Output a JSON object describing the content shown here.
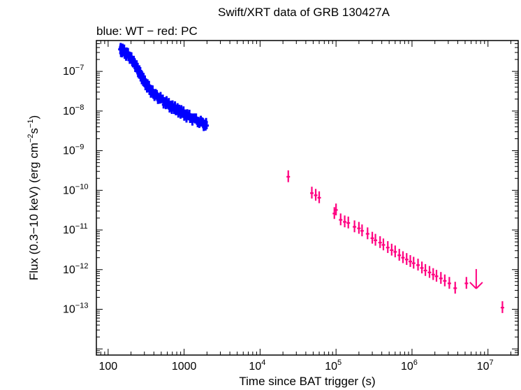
{
  "chart_data": {
    "type": "scatter",
    "title": "Swift/XRT data of GRB 130427A",
    "subtitle": "blue: WT − red: PC",
    "xlabel": "Time since BAT trigger (s)",
    "ylabel": {
      "prefix": "Flux (0.3−10 keV) (erg cm",
      "exp1": "−2",
      "mid": "s",
      "exp2": "−1",
      "suffix": ")"
    },
    "x_scale": "log",
    "y_scale": "log",
    "xlim": [
      70,
      25000000
    ],
    "ylim": [
      7e-15,
      6e-07
    ],
    "x_ticks": [
      {
        "value": 100,
        "base": "100",
        "exp": ""
      },
      {
        "value": 1000,
        "base": "1000",
        "exp": ""
      },
      {
        "value": 10000,
        "base": "10",
        "exp": "4"
      },
      {
        "value": 100000,
        "base": "10",
        "exp": "5"
      },
      {
        "value": 1000000,
        "base": "10",
        "exp": "6"
      },
      {
        "value": 10000000,
        "base": "10",
        "exp": "7"
      }
    ],
    "y_ticks": [
      {
        "value": 1e-07,
        "base": "10",
        "exp": "−7"
      },
      {
        "value": 1e-08,
        "base": "10",
        "exp": "−8"
      },
      {
        "value": 1e-09,
        "base": "10",
        "exp": "−9"
      },
      {
        "value": 1e-10,
        "base": "10",
        "exp": "−10"
      },
      {
        "value": 1e-11,
        "base": "10",
        "exp": "−11"
      },
      {
        "value": 1e-12,
        "base": "10",
        "exp": "−12"
      },
      {
        "value": 1e-13,
        "base": "10",
        "exp": "−13"
      }
    ],
    "series": [
      {
        "name": "WT",
        "color": "#0000ff",
        "points": [
          [
            145,
            3.6e-07
          ],
          [
            150,
            3.4e-07
          ],
          [
            160,
            3.2e-07
          ],
          [
            170,
            2.9e-07
          ],
          [
            180,
            2.6e-07
          ],
          [
            190,
            2.4e-07
          ],
          [
            200,
            2.1e-07
          ],
          [
            210,
            1.85e-07
          ],
          [
            220,
            1.6e-07
          ],
          [
            230,
            1.4e-07
          ],
          [
            240,
            1.2e-07
          ],
          [
            250,
            1.05e-07
          ],
          [
            260,
            9e-08
          ],
          [
            270,
            8e-08
          ],
          [
            285,
            6.5e-08
          ],
          [
            300,
            5.5e-08
          ],
          [
            320,
            4.6e-08
          ],
          [
            340,
            3.9e-08
          ],
          [
            360,
            3.4e-08
          ],
          [
            380,
            3e-08
          ],
          [
            400,
            2.7e-08
          ],
          [
            430,
            2.4e-08
          ],
          [
            460,
            2.15e-08
          ],
          [
            500,
            1.95e-08
          ],
          [
            550,
            1.7e-08
          ],
          [
            600,
            1.5e-08
          ],
          [
            660,
            1.35e-08
          ],
          [
            720,
            1.2e-08
          ],
          [
            800,
            1.1e-08
          ],
          [
            880,
            9.8e-09
          ],
          [
            960,
            8.8e-09
          ],
          [
            1050,
            8e-09
          ],
          [
            1150,
            7.2e-09
          ],
          [
            1250,
            6.6e-09
          ],
          [
            1400,
            6e-09
          ],
          [
            1550,
            5.4e-09
          ],
          [
            1700,
            5e-09
          ],
          [
            1850,
            4.6e-09
          ],
          [
            1980,
            4.3e-09
          ]
        ]
      },
      {
        "name": "PC",
        "color": "#ff0080",
        "points": [
          [
            23500,
            2.2e-10
          ],
          [
            48000,
            8.5e-11
          ],
          [
            54000,
            7.5e-11
          ],
          [
            60000,
            6.5e-11
          ],
          [
            95000,
            2.6e-11
          ],
          [
            100000,
            3.2e-11
          ],
          [
            115000,
            1.8e-11
          ],
          [
            130000,
            1.6e-11
          ],
          [
            145000,
            1.5e-11
          ],
          [
            175000,
            1.2e-11
          ],
          [
            200000,
            1.1e-11
          ],
          [
            220000,
            9.5e-12
          ],
          [
            260000,
            8e-12
          ],
          [
            300000,
            6.2e-12
          ],
          [
            330000,
            5.5e-12
          ],
          [
            380000,
            4.8e-12
          ],
          [
            420000,
            4.2e-12
          ],
          [
            480000,
            3.6e-12
          ],
          [
            540000,
            3.1e-12
          ],
          [
            600000,
            2.8e-12
          ],
          [
            680000,
            2.3e-12
          ],
          [
            760000,
            2e-12
          ],
          [
            850000,
            1.8e-12
          ],
          [
            950000,
            1.6e-12
          ],
          [
            1050000,
            1.45e-12
          ],
          [
            1200000,
            1.3e-12
          ],
          [
            1350000,
            1.1e-12
          ],
          [
            1500000,
            9.5e-13
          ],
          [
            1700000,
            8.5e-13
          ],
          [
            1900000,
            7.5e-13
          ],
          [
            2100000,
            6.8e-13
          ],
          [
            2400000,
            6e-13
          ],
          [
            2700000,
            5.2e-13
          ],
          [
            3100000,
            4.5e-13
          ],
          [
            3700000,
            3.4e-13
          ],
          [
            5200000,
            4.5e-13
          ],
          [
            15500000,
            1.1e-13
          ]
        ]
      }
    ],
    "upper_limit": {
      "x": 7000000,
      "y": 3.6e-13,
      "color": "#ff0080"
    }
  }
}
